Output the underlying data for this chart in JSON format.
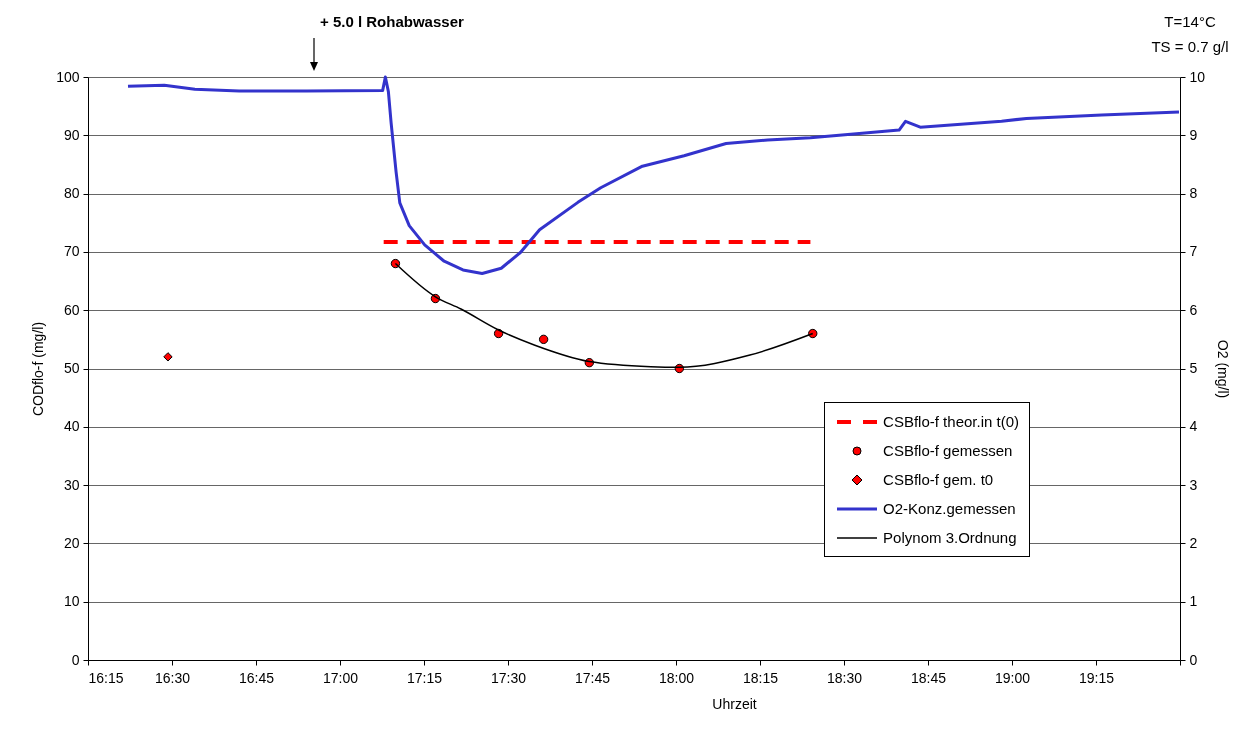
{
  "chart_data": {
    "type": "line",
    "xlabel": "Uhrzeit",
    "ylabel": "CODflo-f (mg/l)",
    "y2label": "O2 (mg/l)",
    "xlim": [
      16.25,
      19.5
    ],
    "xticks": [
      {
        "value": 16.25,
        "label": "16:15"
      },
      {
        "value": 16.5,
        "label": "16:30"
      },
      {
        "value": 16.75,
        "label": "16:45"
      },
      {
        "value": 17,
        "label": "17:00"
      },
      {
        "value": 17.25,
        "label": "17:15"
      },
      {
        "value": 17.5,
        "label": "17:30"
      },
      {
        "value": 17.75,
        "label": "17:45"
      },
      {
        "value": 18,
        "label": "18:00"
      },
      {
        "value": 18.25,
        "label": "18:15"
      },
      {
        "value": 18.5,
        "label": "18:30"
      },
      {
        "value": 18.75,
        "label": "18:45"
      },
      {
        "value": 19,
        "label": "19:00"
      },
      {
        "value": 19.25,
        "label": "19:15"
      },
      {
        "value": 19.5,
        "label": null
      }
    ],
    "ylim": [
      0,
      100
    ],
    "yticks": [
      0,
      10,
      20,
      30,
      40,
      50,
      60,
      70,
      80,
      90,
      100
    ],
    "y2lim": [
      0,
      10
    ],
    "y2ticks": [
      0,
      1,
      2,
      3,
      4,
      5,
      6,
      7,
      8,
      9,
      10
    ],
    "grid": "y",
    "legend": "bottom right",
    "annotations": [
      "+ 5.0 l Rohabwasser",
      "T=14°C",
      "TS = 0.7 g/l"
    ],
    "series": [
      {
        "name": "CSBflo-f theor.in t(0)",
        "color": "#ff0000",
        "line_style": "dashed",
        "x": [
          17.13,
          18.4
        ],
        "values": [
          71.7,
          71.7
        ]
      },
      {
        "name": "CSBflo-f gemessen",
        "type": "scatter",
        "color": "#ff0000",
        "marker": "circle",
        "x": [
          17.165,
          17.284,
          17.472,
          17.606,
          17.742,
          18.01,
          18.407
        ],
        "values": [
          68,
          62,
          56,
          55,
          51,
          50,
          56
        ]
      },
      {
        "name": "CSBflo-f gem. t0",
        "type": "scatter",
        "color": "#ff0000",
        "marker": "diamond",
        "x": [
          16.488
        ],
        "values": [
          52
        ]
      },
      {
        "name": "O2-Konz.gemessen",
        "axis": "y2",
        "color": "#3333cc",
        "line_style": "solid",
        "x": [
          16.369,
          16.477,
          16.568,
          16.7,
          16.9,
          17.127,
          17.135,
          17.144,
          17.152,
          17.167,
          17.178,
          17.206,
          17.252,
          17.31,
          17.366,
          17.423,
          17.48,
          17.537,
          17.594,
          17.708,
          17.776,
          17.9,
          18.024,
          18.149,
          18.273,
          18.4,
          18.52,
          18.664,
          18.683,
          18.727,
          18.969,
          19.043,
          19.267,
          19.497
        ],
        "values": [
          9.84,
          9.86,
          9.79,
          9.76,
          9.76,
          9.77,
          10.0,
          9.75,
          9.22,
          8.37,
          7.84,
          7.45,
          7.12,
          6.84,
          6.69,
          6.63,
          6.72,
          6.99,
          7.38,
          7.85,
          8.1,
          8.47,
          8.65,
          8.86,
          8.92,
          8.96,
          9.02,
          9.09,
          9.24,
          9.14,
          9.24,
          9.29,
          9.35,
          9.4
        ]
      },
      {
        "name": "Polynom 3.Ordnung",
        "color": "#000000",
        "line_style": "solid",
        "x": [
          17.165,
          17.284,
          17.36,
          17.472,
          17.58,
          17.742,
          17.925,
          18.01,
          18.22,
          18.407
        ],
        "values": [
          68,
          62.3,
          60.2,
          56.6,
          54.0,
          51.2,
          50.3,
          50.2,
          52.3,
          56
        ]
      }
    ]
  }
}
